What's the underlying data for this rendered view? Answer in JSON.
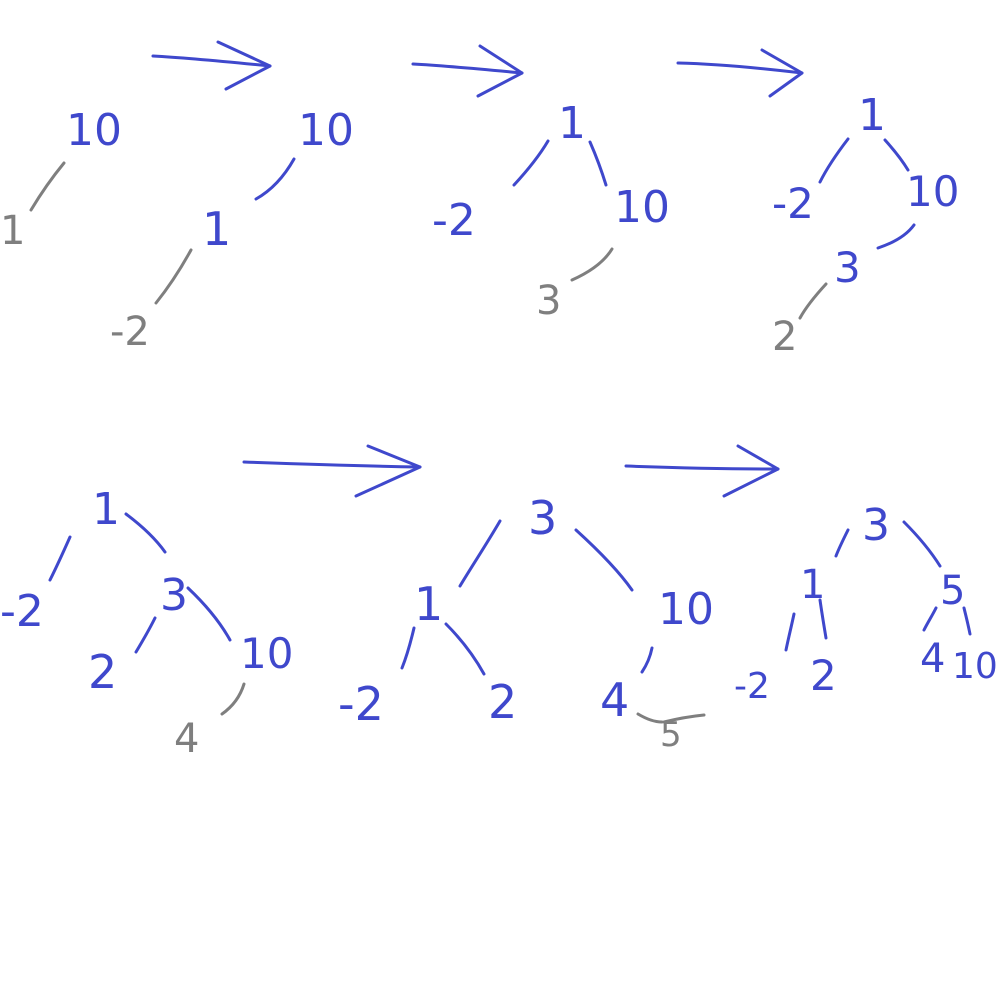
{
  "colors": {
    "ink_blue": "#3f48cc",
    "ink_gray": "#7f7f7f",
    "background": "#ffffff"
  },
  "steps": [
    {
      "nodes": [
        {
          "id": "s1n10",
          "label": "10",
          "ink": "blue"
        },
        {
          "id": "s1n1",
          "label": "1",
          "ink": "gray"
        }
      ]
    },
    {
      "nodes": [
        {
          "id": "s2n10",
          "label": "10",
          "ink": "blue"
        },
        {
          "id": "s2n1",
          "label": "1",
          "ink": "blue"
        },
        {
          "id": "s2n-2",
          "label": "-2",
          "ink": "gray"
        }
      ]
    },
    {
      "nodes": [
        {
          "id": "s3n1",
          "label": "1",
          "ink": "blue"
        },
        {
          "id": "s3n-2",
          "label": "-2",
          "ink": "blue"
        },
        {
          "id": "s3n10",
          "label": "10",
          "ink": "blue"
        },
        {
          "id": "s3n3",
          "label": "3",
          "ink": "gray"
        }
      ]
    },
    {
      "nodes": [
        {
          "id": "s4n1",
          "label": "1",
          "ink": "blue"
        },
        {
          "id": "s4n-2",
          "label": "-2",
          "ink": "blue"
        },
        {
          "id": "s4n10",
          "label": "10",
          "ink": "blue"
        },
        {
          "id": "s4n3",
          "label": "3",
          "ink": "blue"
        },
        {
          "id": "s4n2",
          "label": "2",
          "ink": "gray"
        }
      ]
    },
    {
      "nodes": [
        {
          "id": "s5n1",
          "label": "1",
          "ink": "blue"
        },
        {
          "id": "s5n-2",
          "label": "-2",
          "ink": "blue"
        },
        {
          "id": "s5n3",
          "label": "3",
          "ink": "blue"
        },
        {
          "id": "s5n2",
          "label": "2",
          "ink": "blue"
        },
        {
          "id": "s5n10",
          "label": "10",
          "ink": "blue"
        },
        {
          "id": "s5n4",
          "label": "4",
          "ink": "gray"
        }
      ]
    },
    {
      "nodes": [
        {
          "id": "s6n3",
          "label": "3",
          "ink": "blue"
        },
        {
          "id": "s6n1",
          "label": "1",
          "ink": "blue"
        },
        {
          "id": "s6n10",
          "label": "10",
          "ink": "blue"
        },
        {
          "id": "s6n-2",
          "label": "-2",
          "ink": "blue"
        },
        {
          "id": "s6n2",
          "label": "2",
          "ink": "blue"
        },
        {
          "id": "s6n4",
          "label": "4",
          "ink": "blue"
        },
        {
          "id": "s6n5",
          "label": "5",
          "ink": "gray"
        }
      ]
    },
    {
      "nodes": [
        {
          "id": "s7n3",
          "label": "3",
          "ink": "blue"
        },
        {
          "id": "s7n1",
          "label": "1",
          "ink": "blue"
        },
        {
          "id": "s7n5",
          "label": "5",
          "ink": "blue"
        },
        {
          "id": "s7n-2",
          "label": "-2",
          "ink": "blue"
        },
        {
          "id": "s7n2",
          "label": "2",
          "ink": "blue"
        },
        {
          "id": "s7n4",
          "label": "4",
          "ink": "blue"
        },
        {
          "id": "s7n10",
          "label": "10",
          "ink": "blue"
        }
      ]
    }
  ]
}
